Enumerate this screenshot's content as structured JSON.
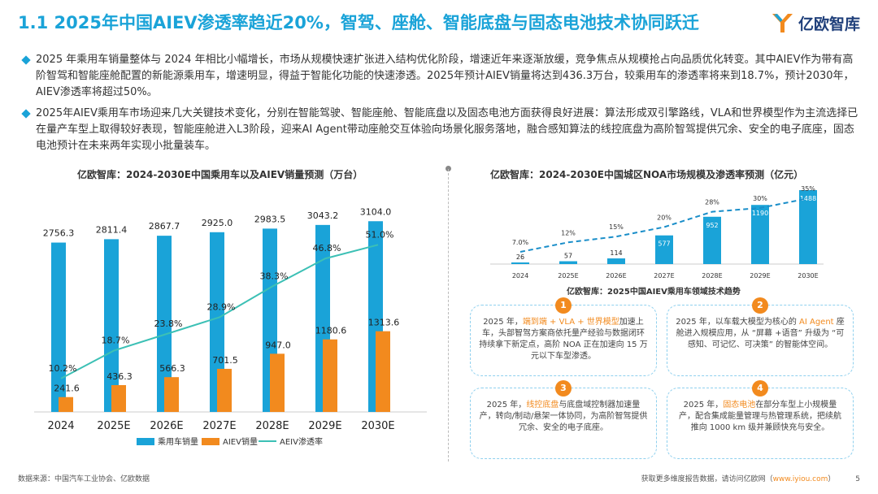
{
  "header": {
    "title": "1.1 2025年中国AIEV渗透率趋近20%，智驾、座舱、智能底盘与固态电池技术协同跃迁",
    "logo_text": "亿欧智库"
  },
  "bullets": [
    "2025 年乘用车销量整体与 2024 年相比小幅增长，市场从规模快速扩张进入结构优化阶段，增速近年来逐渐放缓，竞争焦点从规模抢占向品质优化转变。其中AIEV作为带有高阶智驾和智能座舱配置的新能源乘用车，增速明显，得益于智能化功能的快速渗透。2025年预计AIEV销量将达到436.3万台，较乘用车的渗透率将来到18.7%，预计2030年，AIEV渗透率将超过50%。",
    "2025年AIEV乘用车市场迎来几大关键技术变化，分别在智能驾驶、智能座舱、智能底盘以及固态电池方面获得良好进展：算法形成双引擎路线，VLA和世界模型作为主流选择已在量产车型上取得较好表现，智能座舱进入L3阶段，迎来AI Agent带动座舱交互体验向场景化服务落地，融合感知算法的线控底盘为高阶智驾提供冗余、安全的电子底座，固态电池预计在未来两年实现小批量装车。"
  ],
  "left_chart_title": "亿欧智库：2024-2030E中国乘用车以及AIEV销量预测（万台）",
  "right_chart_title": "亿欧智库：2024-2030E中国城区NOA市场规模及渗透率预测（亿元）",
  "trend_title": "亿欧智库：2025中国AIEV乘用车领域技术趋势",
  "chart_data": [
    {
      "type": "bar",
      "title": "亿欧智库：2024-2030E中国乘用车以及AIEV销量预测（万台）",
      "categories": [
        "2024",
        "2025E",
        "2026E",
        "2027E",
        "2028E",
        "2029E",
        "2030E"
      ],
      "series": [
        {
          "name": "乘用车销量",
          "kind": "bar",
          "color": "#1aa3d8",
          "values": [
            2756.3,
            2811.4,
            2867.7,
            2925.0,
            2983.5,
            3043.2,
            3104.0
          ],
          "labels": [
            "2756.3",
            "2811.4",
            "2867.7",
            "2925.0",
            "2983.5",
            "3043.2",
            "3104.0"
          ]
        },
        {
          "name": "AIEV销量",
          "kind": "bar",
          "color": "#f28a1e",
          "values": [
            241.6,
            436.3,
            566.3,
            701.5,
            947.0,
            1180.6,
            1313.6
          ],
          "labels": [
            "241.6",
            "436.3",
            "566.3",
            "701.5",
            "947.0",
            "1180.6",
            "1313.6"
          ]
        },
        {
          "name": "AEIV渗透率",
          "kind": "line",
          "color": "#3cc0b5",
          "values": [
            10.2,
            18.7,
            23.8,
            28.9,
            38.3,
            46.8,
            51.0
          ],
          "labels": [
            "10.2%",
            "18.7%",
            "23.8%",
            "28.9%",
            "38.3%",
            "46.8%",
            "51.0%"
          ]
        }
      ],
      "legend": "bottom"
    },
    {
      "type": "bar",
      "title": "亿欧智库：2024-2030E中国城区NOA市场规模及渗透率预测（亿元）",
      "categories": [
        "2024",
        "2025E",
        "2026E",
        "2027E",
        "2028E",
        "2029E",
        "2030E"
      ],
      "series": [
        {
          "name": "城区NOA市场规模",
          "kind": "bar",
          "color": "#1aa3d8",
          "values": [
            26,
            57,
            114,
            577,
            952,
            1190,
            1488
          ],
          "labels": [
            "26",
            "57",
            "114",
            "577",
            "952",
            "1190",
            "1488"
          ]
        },
        {
          "name": "渗透率",
          "kind": "line",
          "color": "#1a8ec9",
          "values": [
            7.0,
            12,
            15,
            20,
            28,
            30,
            35
          ],
          "labels": [
            "7.0%",
            "12%",
            "15%",
            "20%",
            "28%",
            "30%",
            "35%"
          ]
        }
      ],
      "legend": "none"
    }
  ],
  "trends": [
    {
      "num": "1",
      "before": "2025 年，",
      "highlight": "端到端 + VLA + 世界模型",
      "after": "加速上车，头部智驾方案商依托量产经验与数据闭环持续拿下新定点，高阶 NOA 正在加速向 15 万元以下车型渗透。"
    },
    {
      "num": "2",
      "before": "2025 年，以车载大模型为核心的 ",
      "highlight": "AI Agent",
      "after": " 座舱进入规模应用，从 “屏幕 +语音” 升级为 “可感知、可记忆、可决策” 的智能体空间。"
    },
    {
      "num": "3",
      "before": "2025 年，",
      "highlight": "线控底盘",
      "after": "与底盘域控制器加速量产，转向/制动/悬架一体协同，为高阶智驾提供冗余、安全的电子底座。"
    },
    {
      "num": "4",
      "before": "2025 年，",
      "highlight": "固态电池",
      "after": "在部分车型上小规模量产，配合集成能量管理与热管理系统，把续航推向 1000 km 级并兼顾快充与安全。"
    }
  ],
  "footer": {
    "source": "数据来源：中国汽车工业协会、亿欧数据",
    "more_info": "获取更多维度报告数据，请访问亿欧网（",
    "url": "www.iyiou.com",
    "more_info_end": "）",
    "page": "5"
  }
}
